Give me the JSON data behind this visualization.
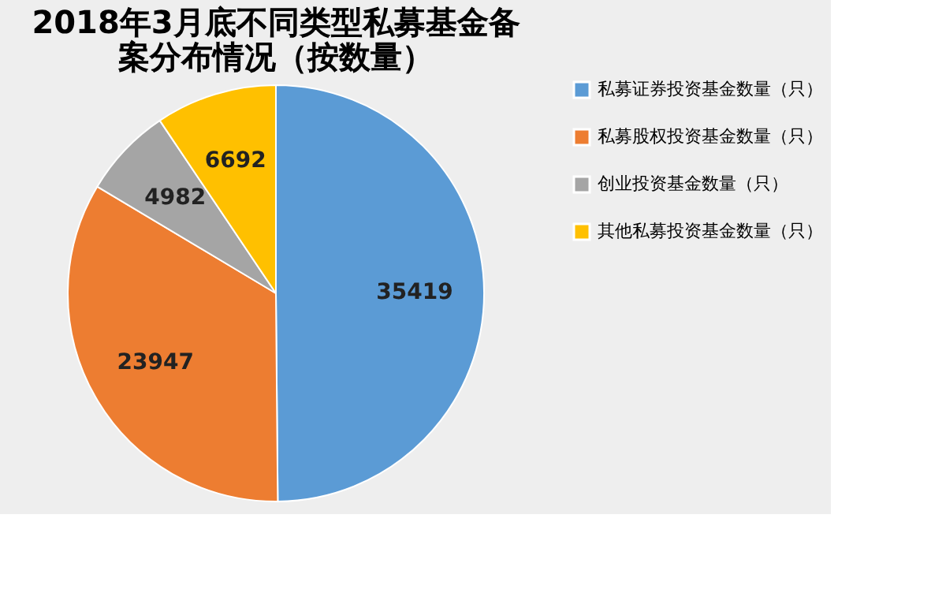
{
  "chart_data": {
    "type": "pie",
    "title": "2018年3月底不同类型私募基金备案分布情况（按数量）",
    "categories": [
      "私募证券投资基金数量（只）",
      "私募股权投资基金数量（只）",
      "创业投资基金数量（只）",
      "其他私募投资基金数量（只）"
    ],
    "values": [
      35419,
      23947,
      4982,
      6692
    ],
    "colors": [
      "#5b9bd5",
      "#ed7d31",
      "#a5a5a5",
      "#ffc000"
    ],
    "data_labels": true,
    "legend": "right"
  }
}
